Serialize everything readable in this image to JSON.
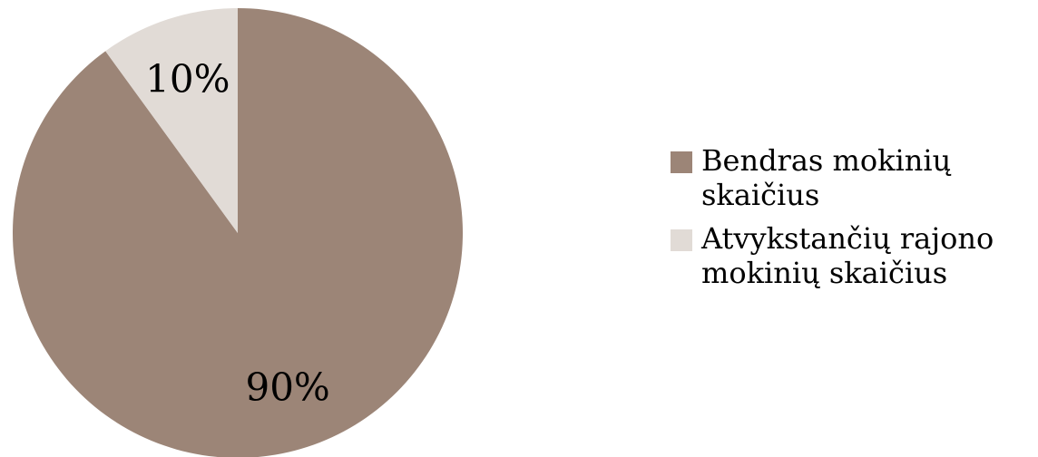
{
  "chart_data": {
    "type": "pie",
    "categories": [
      "Bendras mokinių skaičius",
      "Atvykstančių rajono mokinių skaičius"
    ],
    "values": [
      90,
      10
    ],
    "labels": [
      "90%",
      "10%"
    ],
    "colors": [
      "#9c8577",
      "#e1dbd6"
    ],
    "legend_position": "right"
  }
}
